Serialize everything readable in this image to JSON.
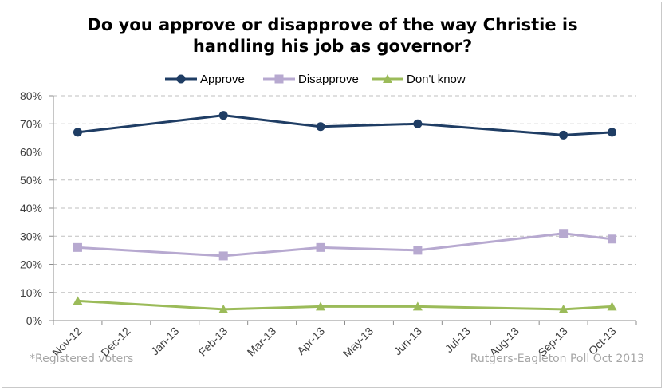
{
  "chart_data": {
    "type": "line",
    "title": [
      "Do you approve or disapprove of the way Christie is",
      "handling his job as governor?"
    ],
    "categories": [
      "Nov-12",
      "Dec-12",
      "Jan-13",
      "Feb-13",
      "Mar-13",
      "Apr-13",
      "May-13",
      "Jun-13",
      "Jul-13",
      "Aug-13",
      "Sep-13",
      "Oct-13"
    ],
    "series": [
      {
        "name": "Approve",
        "color": "#1f3d64",
        "marker": "circle",
        "values": [
          67,
          null,
          null,
          73,
          null,
          69,
          null,
          70,
          null,
          null,
          66,
          67
        ]
      },
      {
        "name": "Disapprove",
        "color": "#b7a9d0",
        "marker": "square",
        "values": [
          26,
          null,
          null,
          23,
          null,
          26,
          null,
          25,
          null,
          null,
          31,
          29
        ]
      },
      {
        "name": "Don't know",
        "color": "#9bbb59",
        "marker": "triangle",
        "values": [
          7,
          null,
          null,
          4,
          null,
          5,
          null,
          5,
          null,
          null,
          4,
          5
        ]
      }
    ],
    "yticks": [
      "0%",
      "10%",
      "20%",
      "30%",
      "40%",
      "50%",
      "60%",
      "70%",
      "80%"
    ],
    "ylim": [
      0,
      80
    ],
    "grid": true,
    "legend": "top"
  },
  "footnotes": {
    "left": "*Registered voters",
    "right": "Rutgers-Eagleton Poll Oct 2013"
  }
}
